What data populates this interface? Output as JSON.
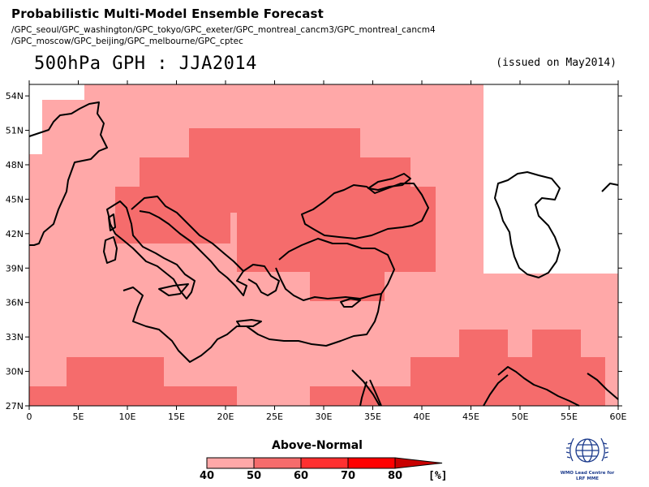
{
  "header": {
    "title": "Probabilistic Multi-Model Ensemble Forecast",
    "models_line1": "/GPC_seoul/GPC_washington/GPC_tokyo/GPC_exeter/GPC_montreal_cancm3/GPC_montreal_cancm4",
    "models_line2": "/GPC_moscow/GPC_beijing/GPC_melbourne/GPC_cptec",
    "main_title": "500hPa GPH : JJA2014",
    "issued": "(issued on May2014)"
  },
  "map": {
    "lon_range": [
      0,
      60
    ],
    "lat_range": [
      27,
      55
    ],
    "lon_ticks": [
      "0",
      "5E",
      "10E",
      "15E",
      "20E",
      "25E",
      "30E",
      "35E",
      "40E",
      "45E",
      "50E",
      "55E",
      "60E"
    ],
    "lat_ticks": [
      "27N",
      "30N",
      "33N",
      "36N",
      "39N",
      "42N",
      "45N",
      "48N",
      "51N",
      "54N"
    ],
    "colors": {
      "none": "#ffffff",
      "p40": "#ffa8a8",
      "p50": "#f56c6c",
      "p60": "#ff3030",
      "p70": "#ff0000",
      "p80": "#c80000"
    }
  },
  "legend": {
    "title": "Above-Normal",
    "labels": [
      "40",
      "50",
      "60",
      "70",
      "80"
    ],
    "unit": "[%]"
  },
  "logo": {
    "caption_line1": "WMO Lead Centre for",
    "caption_line2": "LRF MME"
  }
}
